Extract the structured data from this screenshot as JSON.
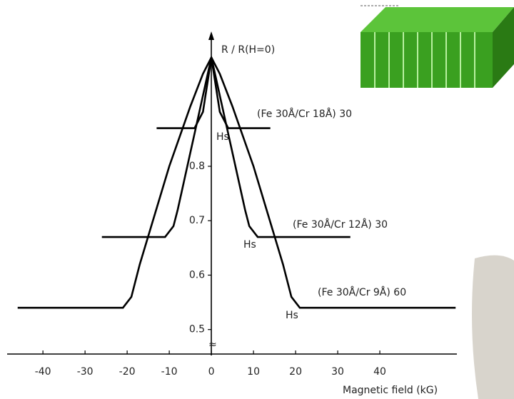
{
  "chart_data": {
    "type": "line",
    "y_label": "R / R(H=0)",
    "x_label": "Magnetic field (kG)",
    "xlim": [
      -48.5,
      58.3
    ],
    "ylim": [
      0.455,
      1.04
    ],
    "xticks": [
      -40,
      -30,
      -20,
      -10,
      0,
      10,
      20,
      30,
      40
    ],
    "yticks": [
      0.5,
      0.6,
      0.7,
      0.8
    ],
    "series": [
      {
        "name": "(Fe 30Å/Cr 18Å) 30",
        "color": "#000000",
        "annotation": "Hs",
        "x": [
          -13,
          -4,
          -2,
          -1,
          0,
          1,
          2,
          4,
          14
        ],
        "values": [
          0.87,
          0.87,
          0.9,
          0.95,
          1.0,
          0.95,
          0.9,
          0.87,
          0.87
        ]
      },
      {
        "name": "(Fe 30Å/Cr 12Å) 30",
        "color": "#000000",
        "annotation": "Hs",
        "x": [
          -26,
          -11,
          -9,
          -8,
          -4,
          -2,
          0,
          2,
          4,
          8,
          9,
          11,
          33
        ],
        "values": [
          0.67,
          0.67,
          0.69,
          0.72,
          0.86,
          0.93,
          1.0,
          0.93,
          0.86,
          0.72,
          0.69,
          0.67,
          0.67
        ]
      },
      {
        "name": "(Fe 30Å/Cr 9Å) 60",
        "color": "#000000",
        "annotation": "Hs",
        "x": [
          -46,
          -21,
          -19,
          -17,
          -10,
          -5,
          -2,
          0,
          2,
          5,
          10,
          17,
          19,
          21,
          58
        ],
        "values": [
          0.54,
          0.54,
          0.56,
          0.62,
          0.8,
          0.91,
          0.97,
          1.0,
          0.97,
          0.91,
          0.8,
          0.62,
          0.56,
          0.54,
          0.54
        ]
      }
    ]
  }
}
